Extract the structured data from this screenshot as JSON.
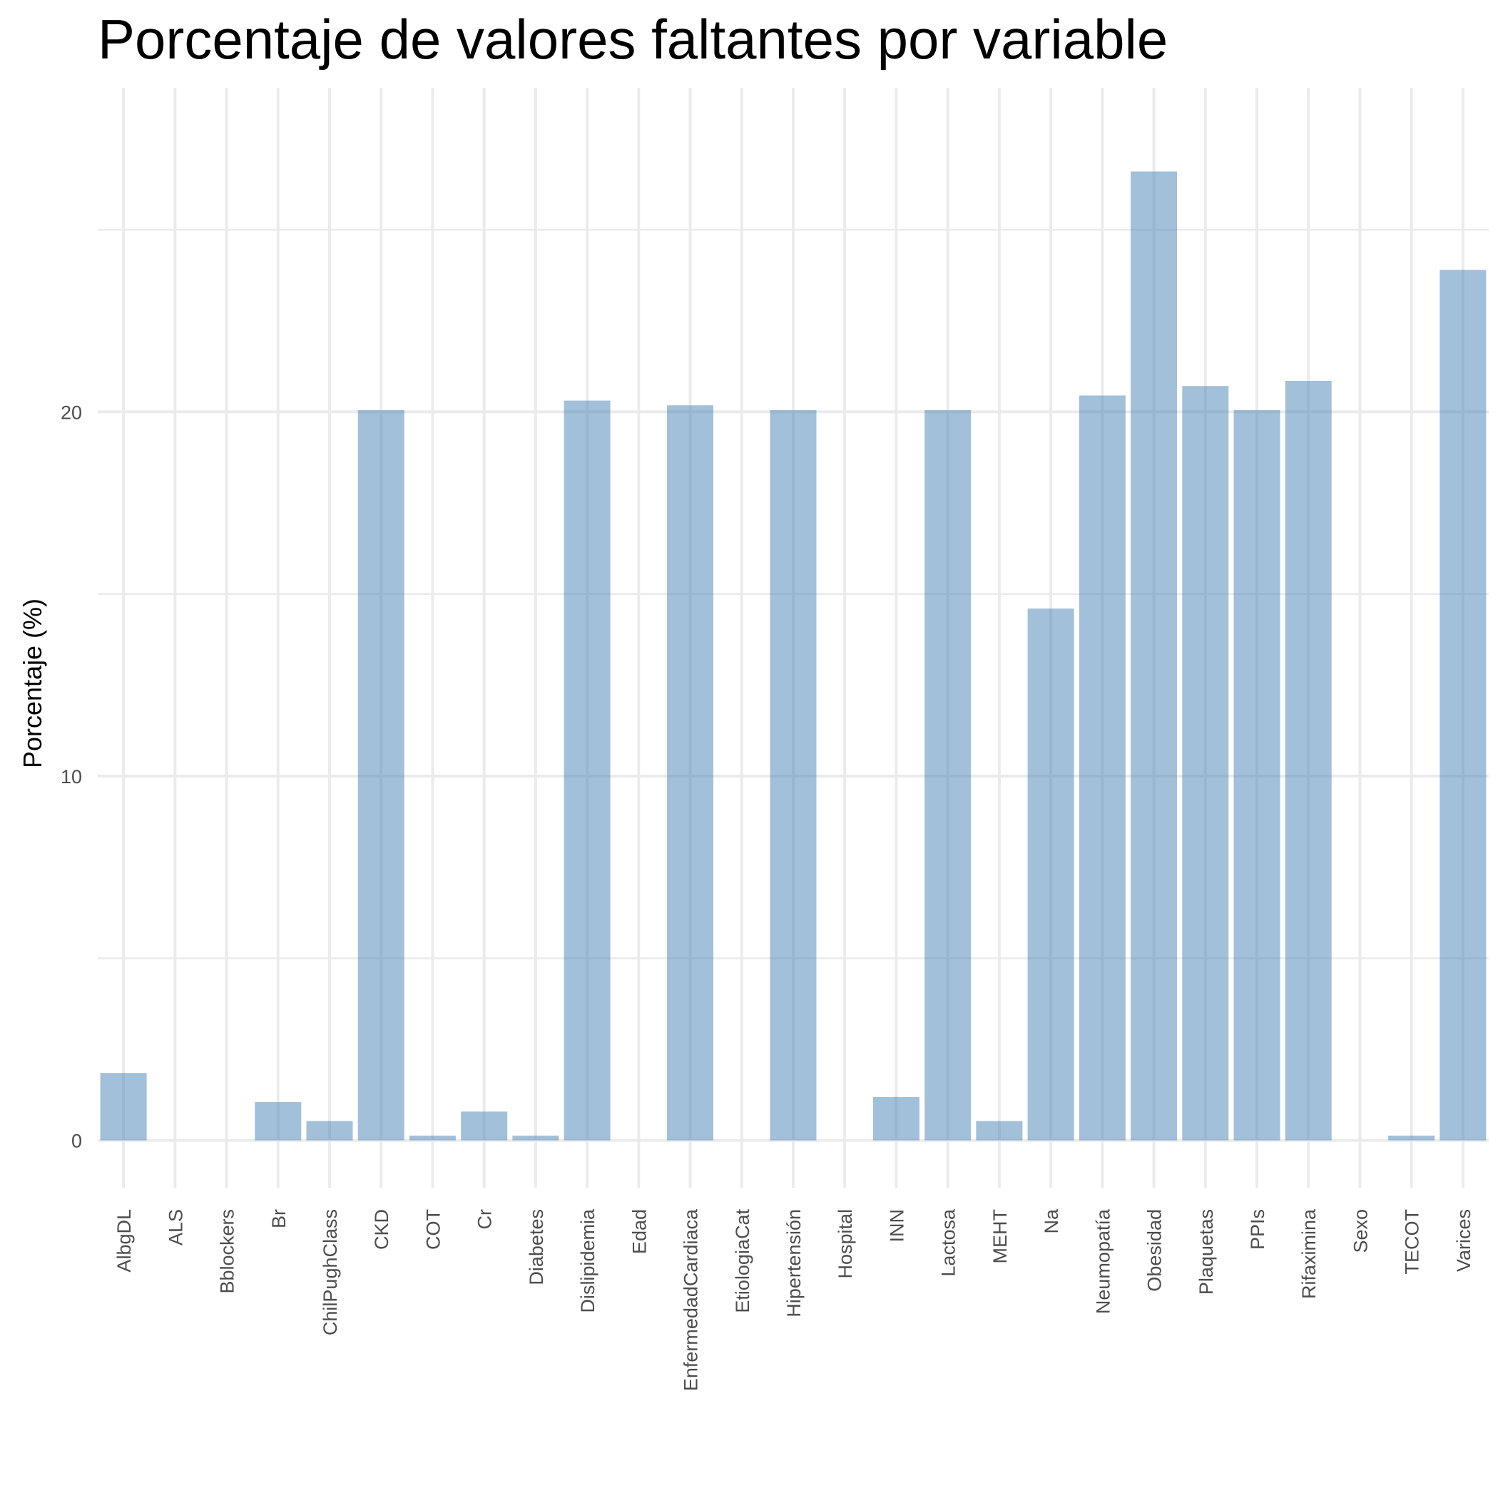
{
  "chart_data": {
    "type": "bar",
    "title": "Porcentaje de valores faltantes por variable",
    "xlabel": "",
    "ylabel": "Porcentaje (%)",
    "ylim": [
      -1.3,
      28.9
    ],
    "yticks": [
      0,
      10,
      20
    ],
    "grid": true,
    "legend": "none",
    "bar_color": "#4682b4",
    "categories": [
      "AlbgDL",
      "ALS",
      "Bblockers",
      "Br",
      "ChilPughClass",
      "CKD",
      "COT",
      "Cr",
      "Diabetes",
      "Dislipidemia",
      "Edad",
      "EnfermedadCardiaca",
      "EtiologiaCat",
      "Hipertensión",
      "Hospital",
      "INN",
      "Lactosa",
      "MEHT",
      "Na",
      "Neumopatía",
      "Obesidad",
      "Plaquetas",
      "PPIs",
      "Rifaximina",
      "Sexo",
      "TECOT",
      "Varices"
    ],
    "values": [
      1.85,
      0,
      0,
      1.05,
      0.53,
      20.05,
      0.13,
      0.79,
      0.13,
      20.31,
      0,
      20.18,
      0,
      20.05,
      0,
      1.19,
      20.05,
      0.53,
      14.6,
      20.45,
      26.6,
      20.71,
      20.05,
      20.85,
      0,
      0.13,
      23.9
    ]
  }
}
